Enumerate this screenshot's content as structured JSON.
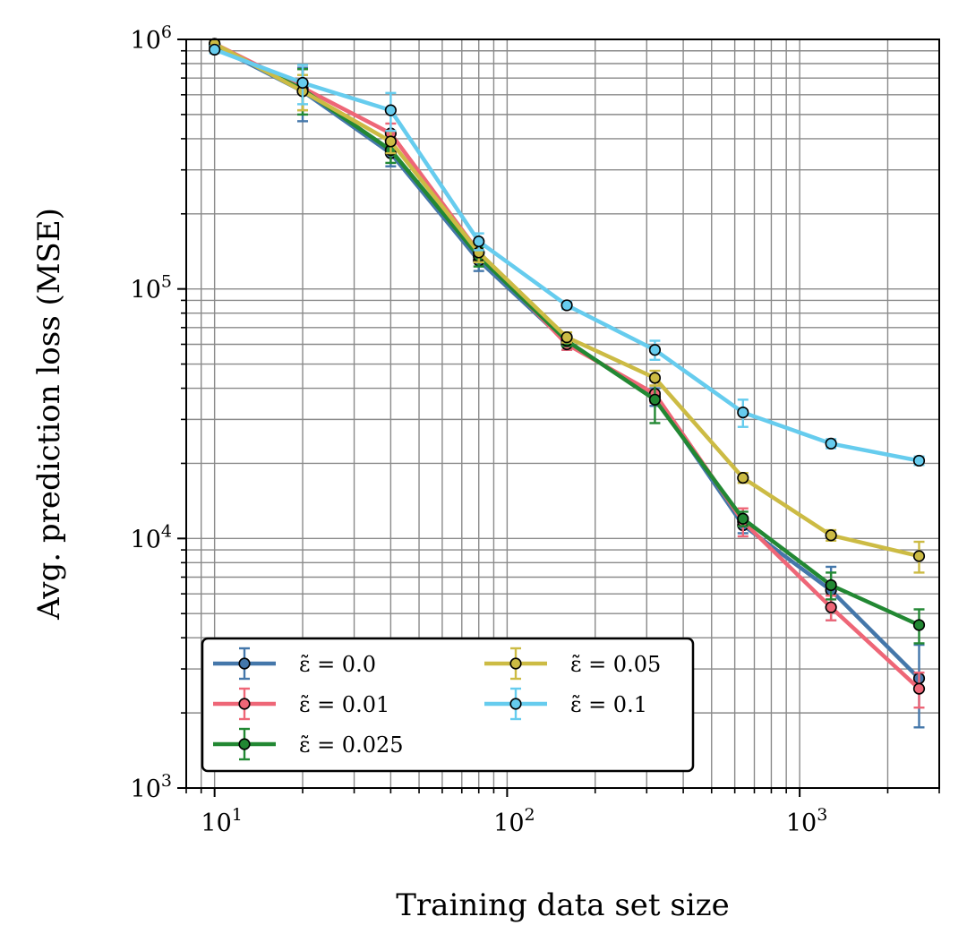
{
  "chart_data": {
    "type": "line",
    "xlabel": "Training data set size",
    "ylabel": "Avg. prediction loss (MSE)",
    "xscale": "log",
    "yscale": "log",
    "xlim": [
      8,
      3000
    ],
    "ylim": [
      1000,
      1000000
    ],
    "grid": "major and minor",
    "legend_position": "lower-left",
    "xticks": [
      {
        "value": 10,
        "base": "10",
        "exp": "1"
      },
      {
        "value": 100,
        "base": "10",
        "exp": "2"
      },
      {
        "value": 1000,
        "base": "10",
        "exp": "3"
      }
    ],
    "yticks": [
      {
        "value": 1000,
        "base": "10",
        "exp": "3"
      },
      {
        "value": 10000,
        "base": "10",
        "exp": "4"
      },
      {
        "value": 100000,
        "base": "10",
        "exp": "5"
      },
      {
        "value": 1000000,
        "base": "10",
        "exp": "6"
      }
    ],
    "x": [
      10,
      20,
      40,
      80,
      160,
      320,
      640,
      1280,
      2560
    ],
    "series": [
      {
        "name": "ε̃ = 0.0",
        "color": "#4477AA",
        "values": [
          940000,
          620000,
          350000,
          130000,
          61000,
          37000,
          11300,
          6200,
          2750
        ],
        "err": [
          30000,
          150000,
          40000,
          12000,
          4000,
          3000,
          800,
          1500,
          1000
        ]
      },
      {
        "name": "ε̃ = 0.01",
        "color": "#EE6677",
        "values": [
          960000,
          640000,
          420000,
          140000,
          60000,
          38000,
          11700,
          5300,
          2500
        ],
        "err": [
          30000,
          120000,
          40000,
          12000,
          3000,
          3000,
          1500,
          600,
          400
        ]
      },
      {
        "name": "ε̃ = 0.025",
        "color": "#228833",
        "values": [
          950000,
          630000,
          360000,
          135000,
          62000,
          36000,
          12000,
          6500,
          4500
        ],
        "err": [
          30000,
          130000,
          40000,
          12000,
          3000,
          7000,
          800,
          800,
          700
        ]
      },
      {
        "name": "ε̃ = 0.05",
        "color": "#CCBB44",
        "values": [
          960000,
          620000,
          390000,
          140000,
          64000,
          44000,
          17500,
          10300,
          8500
        ],
        "err": [
          30000,
          100000,
          40000,
          12000,
          3000,
          3000,
          800,
          500,
          1200
        ]
      },
      {
        "name": "ε̃ = 0.1",
        "color": "#66CCEE",
        "values": [
          910000,
          670000,
          520000,
          155000,
          86000,
          57000,
          32000,
          24000,
          20500
        ],
        "err": [
          30000,
          120000,
          90000,
          12000,
          3000,
          5000,
          4000,
          1000,
          800
        ]
      }
    ]
  }
}
